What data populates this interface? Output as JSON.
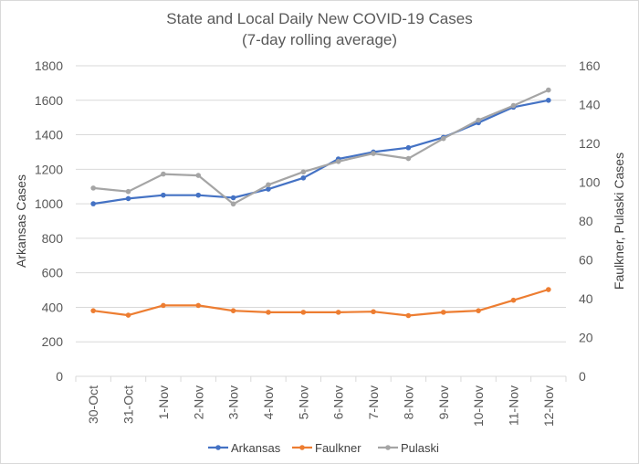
{
  "chart_data": {
    "type": "line",
    "title": "State and Local Daily New COVID-19 Cases",
    "subtitle": "(7-day rolling average)",
    "categories": [
      "30-Oct",
      "31-Oct",
      "1-Nov",
      "2-Nov",
      "3-Nov",
      "4-Nov",
      "5-Nov",
      "6-Nov",
      "7-Nov",
      "8-Nov",
      "9-Nov",
      "10-Nov",
      "11-Nov",
      "12-Nov"
    ],
    "ylabel": "Arkansas Cases",
    "y2label": "Faulkner, Pulaski Cases",
    "ylim": [
      0,
      1800
    ],
    "y2lim": [
      0,
      160
    ],
    "yticks": [
      "0",
      "200",
      "400",
      "600",
      "800",
      "1000",
      "1200",
      "1400",
      "1600",
      "1800"
    ],
    "y2ticks": [
      "0",
      "20",
      "40",
      "60",
      "80",
      "100",
      "120",
      "140",
      "160"
    ],
    "grid": true,
    "legend_position": "bottom",
    "series": [
      {
        "name": "Arkansas",
        "axis": "left",
        "color": "#4472c4",
        "values": [
          1000,
          1030,
          1050,
          1050,
          1035,
          1085,
          1150,
          1260,
          1300,
          1325,
          1385,
          1470,
          1560,
          1600
        ]
      },
      {
        "name": "Faulkner",
        "axis": "right",
        "color": "#ed7d31",
        "values": [
          33.8,
          31.5,
          36.5,
          36.5,
          33.8,
          33.0,
          33.0,
          33.0,
          33.3,
          31.3,
          33.0,
          33.8,
          39.2,
          44.7
        ]
      },
      {
        "name": "Pulaski",
        "axis": "right",
        "color": "#a5a5a5",
        "values": [
          97.0,
          95.2,
          104.2,
          103.5,
          88.8,
          98.7,
          105.3,
          110.7,
          114.8,
          112.2,
          122.5,
          132.0,
          139.5,
          147.5
        ]
      }
    ]
  }
}
